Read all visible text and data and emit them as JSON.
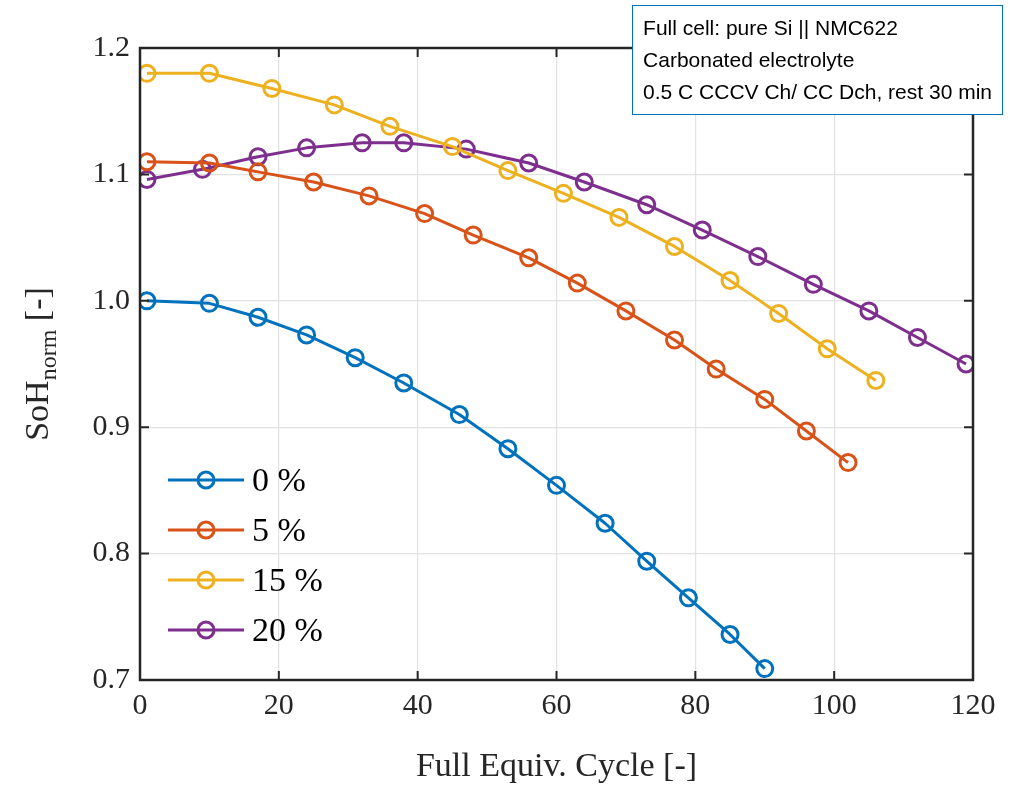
{
  "chart_data": {
    "type": "line",
    "xlabel": "Full Equiv. Cycle [-]",
    "ylabel": "SoH$_{norm}$ [-]",
    "xlim": [
      0,
      120
    ],
    "xticks": [
      0,
      20,
      40,
      60,
      80,
      100,
      120
    ],
    "ylim": [
      0.7,
      1.2
    ],
    "yticks": [
      {
        "value": 0.7,
        "label": "0.7"
      },
      {
        "value": 0.8,
        "label": "0.8"
      },
      {
        "value": 0.9,
        "label": "0.9"
      },
      {
        "value": 1.0,
        "label": "1.0"
      },
      {
        "value": 1.1,
        "label": "1.1"
      },
      {
        "value": 1.2,
        "label": "1.2"
      }
    ],
    "grid": true,
    "legend": "bottom left",
    "marker": "circle",
    "line_style": "solid",
    "annotations": [
      "Full cell: pure Si || NMC622",
      "Carbonated electrolyte",
      "0.5 C CCCV Ch/ CC Dch, rest 30 min"
    ],
    "series": [
      {
        "name": "0 %",
        "color": "#0072bd",
        "x": [
          1,
          10,
          17,
          24,
          31,
          38,
          46,
          53,
          60,
          67,
          73,
          79,
          85,
          90
        ],
        "values": [
          1.0,
          0.998,
          0.987,
          0.973,
          0.955,
          0.935,
          0.91,
          0.883,
          0.854,
          0.824,
          0.794,
          0.765,
          0.736,
          0.709
        ]
      },
      {
        "name": "5 %",
        "color": "#d95319",
        "x": [
          1,
          10,
          17,
          25,
          33,
          41,
          48,
          56,
          63,
          70,
          77,
          83,
          90,
          96,
          102
        ],
        "values": [
          1.11,
          1.109,
          1.102,
          1.094,
          1.083,
          1.069,
          1.052,
          1.034,
          1.014,
          0.992,
          0.969,
          0.946,
          0.922,
          0.897,
          0.872
        ]
      },
      {
        "name": "15 %",
        "color": "#edb120",
        "x": [
          1,
          10,
          19,
          28,
          36,
          45,
          53,
          61,
          69,
          77,
          85,
          92,
          99,
          106
        ],
        "values": [
          1.18,
          1.18,
          1.168,
          1.155,
          1.138,
          1.122,
          1.103,
          1.085,
          1.066,
          1.043,
          1.016,
          0.99,
          0.962,
          0.937
        ]
      },
      {
        "name": "20 %",
        "color": "#7e2f8e",
        "x": [
          1,
          9,
          17,
          24,
          32,
          38,
          47,
          56,
          64,
          73,
          81,
          89,
          97,
          105,
          112,
          119
        ],
        "values": [
          1.096,
          1.104,
          1.114,
          1.121,
          1.125,
          1.125,
          1.12,
          1.109,
          1.094,
          1.076,
          1.056,
          1.035,
          1.013,
          0.992,
          0.971,
          0.95
        ]
      }
    ]
  }
}
